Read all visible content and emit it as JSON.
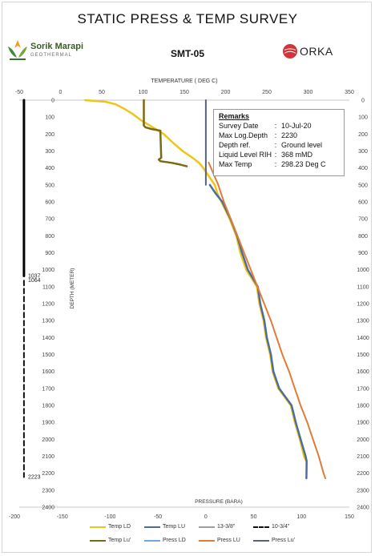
{
  "title": "STATIC PRESS & TEMP SURVEY",
  "well_name": "SMT-05",
  "logo_left": {
    "name": "Sorik Marapi",
    "sub": "GEOTHERMAL",
    "icon": "leaf-logo-icon",
    "color": "#4c7a2c"
  },
  "logo_right": {
    "name": "ORKA",
    "icon": "orka-circle-logo-icon",
    "color": "#d3343b"
  },
  "remarks": {
    "heading": "Remarks",
    "rows": [
      {
        "key": "Survey Date",
        "value": "10-Jul-20"
      },
      {
        "key": "Max Log.Depth",
        "value": "2230"
      },
      {
        "key": "Depth ref.",
        "value": "Ground level"
      },
      {
        "key": "Liquid Level RIH",
        "value": "368  mMD"
      },
      {
        "key": "Max Temp",
        "value": " 298.23 Deg C"
      }
    ]
  },
  "chart_data": {
    "type": "line",
    "title": "STATIC PRESS & TEMP SURVEY",
    "top_axis_label": "TEMPERATURE ( DEG C)",
    "top_axis_range": [
      -50,
      350
    ],
    "top_ticks": [
      "-50",
      "0",
      "50",
      "100",
      "150",
      "200",
      "250",
      "300",
      "350"
    ],
    "bottom_axis_label": "PRESSURE (BARA)",
    "bottom_axis_range": [
      -200,
      150
    ],
    "bottom_ticks": [
      "-200",
      "-150",
      "-100",
      "-50",
      "0",
      "50",
      "100",
      "150"
    ],
    "y_axis_label": "DEPTH (METER)",
    "y_range": [
      0,
      2400
    ],
    "y_ticks": [
      "0",
      "100",
      "200",
      "300",
      "400",
      "500",
      "600",
      "700",
      "800",
      "900",
      "1000",
      "1100",
      "1200",
      "1300",
      "1400",
      "1500",
      "1600",
      "1700",
      "1800",
      "1900",
      "2000",
      "2100",
      "2200",
      "2300",
      "2400"
    ],
    "grid": false,
    "legend_position": "bottom",
    "annotations": [
      {
        "text": "1037",
        "depth": 1037
      },
      {
        "text": "1064",
        "depth": 1064
      },
      {
        "text": "2223",
        "depth": 2223
      }
    ],
    "series": [
      {
        "name": "Temp LD",
        "axis": "temperature",
        "color": "#f0c419",
        "width": 2.5,
        "dash": "",
        "depth": [
          0,
          10,
          25,
          50,
          80,
          120,
          160,
          200,
          250,
          300,
          340,
          370,
          400,
          450,
          500,
          550,
          600,
          650,
          700,
          800,
          900,
          1000,
          1100,
          1200,
          1300,
          1400,
          1500,
          1600,
          1700,
          1800,
          1900,
          2000,
          2100,
          2130
        ],
        "values": [
          30,
          55,
          67,
          77,
          87,
          98,
          112,
          125,
          136,
          148,
          160,
          168,
          173,
          180,
          187,
          190,
          195,
          200,
          205,
          213,
          218,
          225,
          238,
          241,
          246,
          249,
          254,
          257,
          264,
          279,
          284,
          290,
          295,
          298
        ]
      },
      {
        "name": "Temp LU",
        "axis": "temperature",
        "color": "#4a6f9e",
        "width": 2.5,
        "dash": "",
        "depth": [
          500,
          550,
          600,
          650,
          700,
          800,
          900,
          1000,
          1100,
          1200,
          1300,
          1400,
          1500,
          1600,
          1700,
          1800,
          1900,
          2000,
          2100,
          2130,
          2230
        ],
        "values": [
          181,
          188,
          196,
          201,
          206,
          214,
          220,
          227,
          239,
          242,
          247,
          250,
          255,
          258,
          265,
          280,
          285,
          291,
          297,
          298.23,
          298
        ]
      },
      {
        "name": "13-3/8\"",
        "axis": "pressure",
        "color": "#9e9e9e",
        "width": 2,
        "dash": "",
        "depth": [],
        "values": []
      },
      {
        "name": "10-3/4\"",
        "axis": "pressure",
        "color": "#111111",
        "width": 2,
        "dash": "6,4",
        "depth": [
          1064,
          2223
        ],
        "values": [
          -190,
          -190
        ]
      },
      {
        "name": "Temp Lu'",
        "axis": "temperature",
        "color": "#7a6a14",
        "width": 2.5,
        "dash": "",
        "depth": [
          0,
          150,
          160,
          170,
          180,
          340,
          350,
          360,
          370,
          380,
          390
        ],
        "values": [
          101,
          101,
          103,
          110,
          121,
          122,
          119,
          121,
          135,
          145,
          153
        ]
      },
      {
        "name": "Press LD",
        "axis": "pressure",
        "color": "#6fa8dc",
        "width": 2,
        "dash": "",
        "depth": [],
        "values": []
      },
      {
        "name": "Press LU",
        "axis": "pressure",
        "color": "#e07c38",
        "width": 2,
        "dash": "",
        "depth": [
          368,
          500,
          600,
          700,
          800,
          900,
          1000,
          1100,
          1200,
          1300,
          1400,
          1500,
          1600,
          1700,
          1800,
          1900,
          2000,
          2100,
          2200,
          2230
        ],
        "values": [
          3,
          13,
          19,
          26,
          33,
          40,
          47,
          54,
          61,
          68,
          74,
          80,
          87,
          93,
          99,
          106,
          112,
          118,
          123,
          125
        ]
      },
      {
        "name": "Press Lu'",
        "axis": "pressure",
        "color": "#596377",
        "width": 2,
        "dash": "",
        "depth": [
          0,
          500
        ],
        "values": [
          0,
          0
        ]
      },
      {
        "name": "casing-solid",
        "axis": "pressure",
        "color": "#000000",
        "width": 3,
        "dash": "",
        "depth": [
          0,
          1037
        ],
        "values": [
          -190,
          -190
        ]
      }
    ]
  }
}
